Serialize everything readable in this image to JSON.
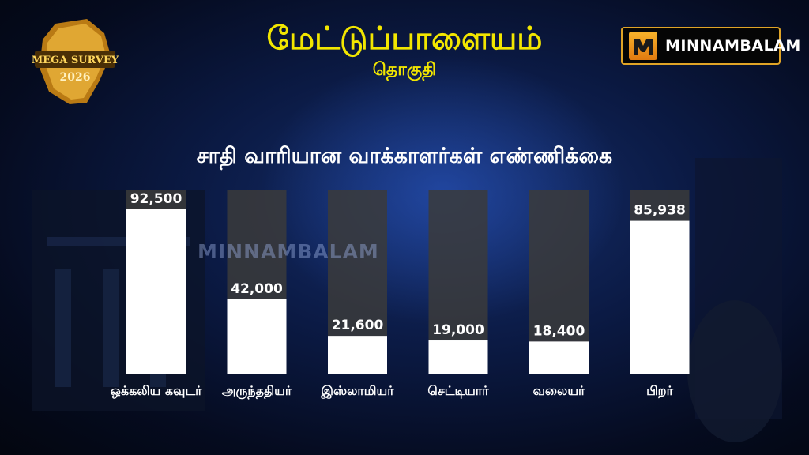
{
  "header": {
    "title": "மேட்டுப்பாளையம்",
    "subtitle": "தொகுதி"
  },
  "badge": {
    "line1": "MEGA SURVEY",
    "line2": "2026"
  },
  "logo": {
    "text": "MINNAMBALAM"
  },
  "watermark": "MINNAMBALAM",
  "colors": {
    "title": "#f2e600",
    "bar_fill": "#ffffff",
    "bar_track": "#3b3b3b",
    "background": "#0b1a44"
  },
  "chart_data": {
    "type": "bar",
    "title": "சாதி வாரியான வாக்காளர்கள்  எண்ணிக்கை",
    "categories": [
      "ஒக்கலிய கவுடர்",
      "அருந்ததியர்",
      "இஸ்லாமியர்",
      "செட்டியார்",
      "வலையர்",
      "பிறர்"
    ],
    "values": [
      92500,
      42000,
      21600,
      19000,
      18400,
      85938
    ],
    "value_labels": [
      "92,500",
      "42,000",
      "21,600",
      "19,000",
      "18,400",
      "85,938"
    ],
    "ylim": [
      0,
      103000
    ],
    "grid": false,
    "legend": "none"
  }
}
